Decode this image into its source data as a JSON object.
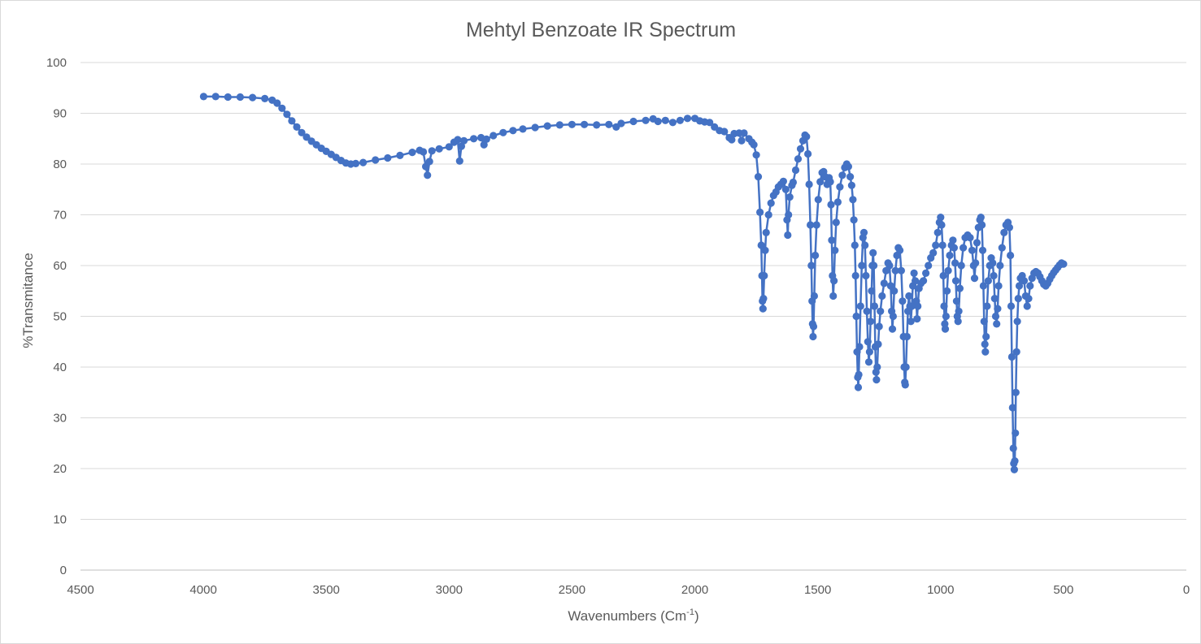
{
  "chart_data": {
    "type": "scatter",
    "title": "Mehtyl Benzoate IR Spectrum",
    "xlabel": "Wavenumbers (Cm",
    "xlabel_superscript": "-1",
    "xlabel_suffix": ")",
    "ylabel": "%Transmitance",
    "xlim": [
      4500,
      0
    ],
    "ylim": [
      0,
      100
    ],
    "x_reversed": true,
    "xticks": [
      4500,
      4000,
      3500,
      3000,
      2500,
      2000,
      1500,
      1000,
      500,
      0
    ],
    "yticks": [
      0,
      10,
      20,
      30,
      40,
      50,
      60,
      70,
      80,
      90,
      100
    ],
    "grid": "horizontal",
    "legend": "none",
    "series": [
      {
        "color": "#4472c4",
        "marker": "circle",
        "line": true,
        "points": [
          [
            3999,
            93.3
          ],
          [
            3950,
            93.3
          ],
          [
            3900,
            93.2
          ],
          [
            3850,
            93.2
          ],
          [
            3800,
            93.1
          ],
          [
            3750,
            92.9
          ],
          [
            3720,
            92.6
          ],
          [
            3700,
            92.0
          ],
          [
            3680,
            91.0
          ],
          [
            3660,
            89.8
          ],
          [
            3640,
            88.5
          ],
          [
            3620,
            87.3
          ],
          [
            3600,
            86.2
          ],
          [
            3580,
            85.3
          ],
          [
            3560,
            84.5
          ],
          [
            3540,
            83.8
          ],
          [
            3520,
            83.1
          ],
          [
            3500,
            82.5
          ],
          [
            3480,
            81.9
          ],
          [
            3460,
            81.3
          ],
          [
            3440,
            80.7
          ],
          [
            3420,
            80.2
          ],
          [
            3400,
            80.0
          ],
          [
            3380,
            80.1
          ],
          [
            3350,
            80.3
          ],
          [
            3300,
            80.8
          ],
          [
            3250,
            81.2
          ],
          [
            3200,
            81.7
          ],
          [
            3150,
            82.3
          ],
          [
            3120,
            82.7
          ],
          [
            3105,
            82.4
          ],
          [
            3095,
            79.5
          ],
          [
            3088,
            77.8
          ],
          [
            3080,
            80.5
          ],
          [
            3070,
            82.6
          ],
          [
            3040,
            83.0
          ],
          [
            3000,
            83.4
          ],
          [
            2980,
            84.3
          ],
          [
            2965,
            84.8
          ],
          [
            2957,
            80.6
          ],
          [
            2950,
            83.5
          ],
          [
            2940,
            84.6
          ],
          [
            2900,
            85.0
          ],
          [
            2870,
            85.2
          ],
          [
            2858,
            83.8
          ],
          [
            2848,
            84.9
          ],
          [
            2820,
            85.6
          ],
          [
            2780,
            86.2
          ],
          [
            2740,
            86.6
          ],
          [
            2700,
            86.9
          ],
          [
            2650,
            87.2
          ],
          [
            2600,
            87.5
          ],
          [
            2550,
            87.7
          ],
          [
            2500,
            87.8
          ],
          [
            2450,
            87.8
          ],
          [
            2400,
            87.7
          ],
          [
            2350,
            87.8
          ],
          [
            2320,
            87.3
          ],
          [
            2300,
            88.0
          ],
          [
            2250,
            88.4
          ],
          [
            2200,
            88.6
          ],
          [
            2170,
            88.9
          ],
          [
            2150,
            88.4
          ],
          [
            2120,
            88.6
          ],
          [
            2090,
            88.2
          ],
          [
            2060,
            88.6
          ],
          [
            2030,
            89.0
          ],
          [
            2000,
            89.0
          ],
          [
            1980,
            88.5
          ],
          [
            1960,
            88.3
          ],
          [
            1940,
            88.2
          ],
          [
            1920,
            87.3
          ],
          [
            1900,
            86.6
          ],
          [
            1880,
            86.4
          ],
          [
            1860,
            85.2
          ],
          [
            1850,
            84.8
          ],
          [
            1840,
            86.0
          ],
          [
            1820,
            86.1
          ],
          [
            1810,
            84.6
          ],
          [
            1800,
            86.1
          ],
          [
            1780,
            85.0
          ],
          [
            1768,
            84.3
          ],
          [
            1760,
            83.8
          ],
          [
            1750,
            81.8
          ],
          [
            1742,
            77.5
          ],
          [
            1735,
            70.5
          ],
          [
            1730,
            64.0
          ],
          [
            1727,
            58.0
          ],
          [
            1725,
            53.0
          ],
          [
            1723,
            51.5
          ],
          [
            1721,
            53.5
          ],
          [
            1718,
            58.0
          ],
          [
            1714,
            63.0
          ],
          [
            1710,
            66.5
          ],
          [
            1700,
            70.0
          ],
          [
            1690,
            72.3
          ],
          [
            1680,
            73.8
          ],
          [
            1670,
            74.5
          ],
          [
            1660,
            75.5
          ],
          [
            1650,
            76.0
          ],
          [
            1640,
            76.6
          ],
          [
            1630,
            75.0
          ],
          [
            1625,
            69.0
          ],
          [
            1622,
            66.0
          ],
          [
            1619,
            70.0
          ],
          [
            1614,
            73.5
          ],
          [
            1605,
            75.8
          ],
          [
            1600,
            76.4
          ],
          [
            1590,
            78.8
          ],
          [
            1580,
            81.0
          ],
          [
            1570,
            83.0
          ],
          [
            1560,
            84.6
          ],
          [
            1552,
            85.7
          ],
          [
            1546,
            85.4
          ],
          [
            1540,
            82.0
          ],
          [
            1535,
            76.0
          ],
          [
            1530,
            68.0
          ],
          [
            1526,
            60.0
          ],
          [
            1523,
            53.0
          ],
          [
            1521,
            48.5
          ],
          [
            1519,
            46.0
          ],
          [
            1517,
            48.0
          ],
          [
            1514,
            54.0
          ],
          [
            1510,
            62.0
          ],
          [
            1505,
            68.0
          ],
          [
            1498,
            73.0
          ],
          [
            1490,
            76.5
          ],
          [
            1482,
            78.3
          ],
          [
            1476,
            78.5
          ],
          [
            1470,
            77.5
          ],
          [
            1462,
            76.0
          ],
          [
            1454,
            77.3
          ],
          [
            1449,
            76.5
          ],
          [
            1446,
            72.0
          ],
          [
            1443,
            65.0
          ],
          [
            1440,
            58.0
          ],
          [
            1437,
            54.0
          ],
          [
            1434,
            57.0
          ],
          [
            1430,
            63.0
          ],
          [
            1425,
            68.5
          ],
          [
            1418,
            72.5
          ],
          [
            1410,
            75.5
          ],
          [
            1400,
            77.8
          ],
          [
            1390,
            79.3
          ],
          [
            1382,
            80.0
          ],
          [
            1375,
            79.5
          ],
          [
            1368,
            77.5
          ],
          [
            1362,
            75.8
          ],
          [
            1357,
            73.0
          ],
          [
            1353,
            69.0
          ],
          [
            1349,
            64.0
          ],
          [
            1346,
            58.0
          ],
          [
            1343,
            50.0
          ],
          [
            1340,
            43.0
          ],
          [
            1337,
            38.0
          ],
          [
            1335,
            36.0
          ],
          [
            1333,
            38.5
          ],
          [
            1330,
            44.0
          ],
          [
            1326,
            52.0
          ],
          [
            1321,
            60.0
          ],
          [
            1316,
            65.5
          ],
          [
            1312,
            66.5
          ],
          [
            1308,
            64.0
          ],
          [
            1304,
            58.0
          ],
          [
            1300,
            51.0
          ],
          [
            1296,
            45.0
          ],
          [
            1292,
            41.0
          ],
          [
            1289,
            43.0
          ],
          [
            1285,
            49.0
          ],
          [
            1281,
            55.0
          ],
          [
            1278,
            60.0
          ],
          [
            1275,
            62.5
          ],
          [
            1272,
            60.0
          ],
          [
            1269,
            52.0
          ],
          [
            1266,
            44.0
          ],
          [
            1263,
            39.0
          ],
          [
            1261,
            37.5
          ],
          [
            1258,
            40.0
          ],
          [
            1254,
            44.5
          ],
          [
            1250,
            48.0
          ],
          [
            1245,
            51.0
          ],
          [
            1238,
            54.0
          ],
          [
            1230,
            56.5
          ],
          [
            1222,
            59.0
          ],
          [
            1214,
            60.5
          ],
          [
            1208,
            60.0
          ],
          [
            1203,
            56.0
          ],
          [
            1199,
            51.0
          ],
          [
            1196,
            47.5
          ],
          [
            1193,
            50.0
          ],
          [
            1189,
            55.0
          ],
          [
            1184,
            59.0
          ],
          [
            1178,
            62.0
          ],
          [
            1172,
            63.5
          ],
          [
            1166,
            63.0
          ],
          [
            1160,
            59.0
          ],
          [
            1155,
            53.0
          ],
          [
            1151,
            46.0
          ],
          [
            1148,
            40.0
          ],
          [
            1146,
            37.0
          ],
          [
            1144,
            36.5
          ],
          [
            1141,
            40.0
          ],
          [
            1137,
            46.0
          ],
          [
            1133,
            51.0
          ],
          [
            1129,
            54.0
          ],
          [
            1125,
            52.0
          ],
          [
            1121,
            49.0
          ],
          [
            1117,
            52.0
          ],
          [
            1113,
            56.0
          ],
          [
            1108,
            58.5
          ],
          [
            1103,
            57.0
          ],
          [
            1099,
            53.0
          ],
          [
            1096,
            49.5
          ],
          [
            1093,
            52.0
          ],
          [
            1088,
            55.5
          ],
          [
            1080,
            56.5
          ],
          [
            1070,
            57.0
          ],
          [
            1060,
            58.5
          ],
          [
            1050,
            60.0
          ],
          [
            1040,
            61.5
          ],
          [
            1030,
            62.5
          ],
          [
            1020,
            64.0
          ],
          [
            1012,
            66.5
          ],
          [
            1005,
            68.5
          ],
          [
            1000,
            69.5
          ],
          [
            996,
            68.0
          ],
          [
            992,
            64.0
          ],
          [
            989,
            58.0
          ],
          [
            986,
            52.0
          ],
          [
            983,
            48.5
          ],
          [
            981,
            47.5
          ],
          [
            978,
            50.0
          ],
          [
            974,
            55.0
          ],
          [
            969,
            59.0
          ],
          [
            963,
            62.0
          ],
          [
            956,
            64.0
          ],
          [
            950,
            65.0
          ],
          [
            945,
            63.5
          ],
          [
            941,
            60.5
          ],
          [
            938,
            57.0
          ],
          [
            935,
            53.0
          ],
          [
            932,
            50.0
          ],
          [
            929,
            49.0
          ],
          [
            926,
            51.0
          ],
          [
            922,
            55.5
          ],
          [
            916,
            60.0
          ],
          [
            908,
            63.5
          ],
          [
            900,
            65.5
          ],
          [
            890,
            66.0
          ],
          [
            880,
            65.5
          ],
          [
            872,
            63.0
          ],
          [
            866,
            60.0
          ],
          [
            862,
            57.5
          ],
          [
            858,
            60.5
          ],
          [
            852,
            64.5
          ],
          [
            846,
            67.5
          ],
          [
            840,
            69.0
          ],
          [
            836,
            69.5
          ],
          [
            832,
            68.0
          ],
          [
            829,
            63.0
          ],
          [
            826,
            56.0
          ],
          [
            823,
            49.0
          ],
          [
            820,
            44.5
          ],
          [
            818,
            43.0
          ],
          [
            815,
            46.0
          ],
          [
            811,
            52.0
          ],
          [
            806,
            57.0
          ],
          [
            800,
            60.0
          ],
          [
            794,
            61.5
          ],
          [
            788,
            60.5
          ],
          [
            784,
            58.0
          ],
          [
            780,
            53.5
          ],
          [
            776,
            50.0
          ],
          [
            772,
            48.5
          ],
          [
            768,
            51.5
          ],
          [
            764,
            56.0
          ],
          [
            758,
            60.0
          ],
          [
            750,
            63.5
          ],
          [
            742,
            66.5
          ],
          [
            734,
            68.0
          ],
          [
            726,
            68.5
          ],
          [
            720,
            67.5
          ],
          [
            716,
            62.0
          ],
          [
            713,
            52.0
          ],
          [
            710,
            42.0
          ],
          [
            707,
            32.0
          ],
          [
            704,
            24.0
          ],
          [
            702,
            21.0
          ],
          [
            700,
            19.8
          ],
          [
            698,
            21.5
          ],
          [
            696,
            27.0
          ],
          [
            694,
            35.0
          ],
          [
            691,
            43.0
          ],
          [
            688,
            49.0
          ],
          [
            684,
            53.5
          ],
          [
            680,
            56.0
          ],
          [
            675,
            57.5
          ],
          [
            668,
            58.0
          ],
          [
            660,
            57.0
          ],
          [
            654,
            54.0
          ],
          [
            648,
            52.0
          ],
          [
            642,
            53.5
          ],
          [
            636,
            56.0
          ],
          [
            628,
            57.5
          ],
          [
            620,
            58.5
          ],
          [
            612,
            58.8
          ],
          [
            604,
            58.5
          ],
          [
            596,
            57.8
          ],
          [
            588,
            57.0
          ],
          [
            580,
            56.3
          ],
          [
            572,
            56.0
          ],
          [
            564,
            56.5
          ],
          [
            556,
            57.3
          ],
          [
            548,
            58.0
          ],
          [
            540,
            58.6
          ],
          [
            532,
            59.1
          ],
          [
            524,
            59.6
          ],
          [
            516,
            60.1
          ],
          [
            508,
            60.5
          ],
          [
            500,
            60.3
          ]
        ]
      }
    ]
  }
}
